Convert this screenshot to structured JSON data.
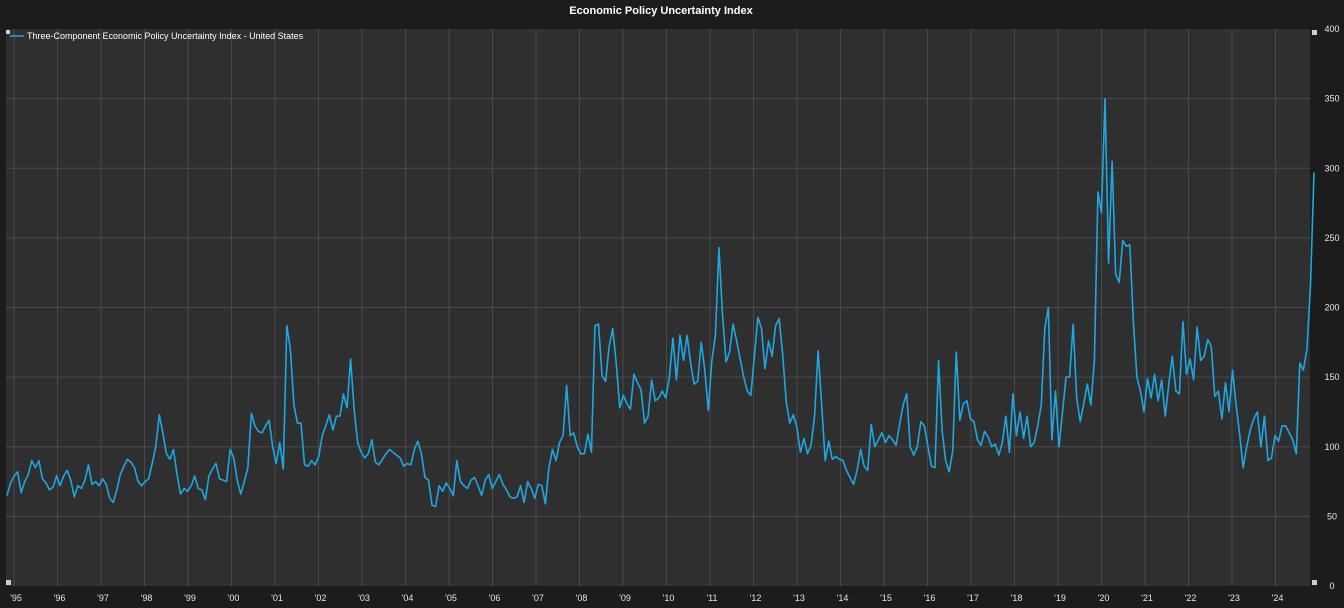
{
  "chart_data": {
    "type": "line",
    "title": "Economic Policy Uncertainty Index",
    "xlabel": "",
    "ylabel": "",
    "ylim": [
      0,
      400
    ],
    "y_ticks": [
      "0",
      "50",
      "100",
      "150",
      "200",
      "250",
      "300",
      "350",
      "400"
    ],
    "x_tick_labels": [
      "'95",
      "'96",
      "'97",
      "'98",
      "'99",
      "'00",
      "'01",
      "'02",
      "'03",
      "'04",
      "'05",
      "'06",
      "'07",
      "'08",
      "'09",
      "'10",
      "'11",
      "'12",
      "'13",
      "'14",
      "'15",
      "'16",
      "'17",
      "'18",
      "'19",
      "'20",
      "'21",
      "'22",
      "'23",
      "'24"
    ],
    "x_range": [
      "1995-01",
      "2024-12"
    ],
    "grid": true,
    "legend_position": "top-left",
    "series": [
      {
        "name": "Three-Component Economic Policy Uncertainty Index - United States",
        "color": "#1ea7e1",
        "start": "1995-01",
        "frequency": "monthly",
        "values": [
          65,
          74,
          79,
          82,
          67,
          75,
          80,
          90,
          85,
          90,
          77,
          74,
          69,
          71,
          79,
          72,
          79,
          83,
          76,
          64,
          72,
          70,
          76,
          87,
          73,
          75,
          72,
          77,
          73,
          63,
          60,
          69,
          80,
          86,
          91,
          89,
          85,
          75,
          72,
          75,
          77,
          88,
          100,
          123,
          110,
          95,
          91,
          98,
          80,
          66,
          70,
          68,
          72,
          79,
          70,
          69,
          62,
          79,
          84,
          88,
          77,
          76,
          75,
          98,
          92,
          76,
          66,
          75,
          85,
          124,
          115,
          111,
          110,
          115,
          119,
          100,
          88,
          103,
          84,
          187,
          170,
          130,
          117,
          117,
          87,
          86,
          90,
          87,
          93,
          108,
          115,
          123,
          112,
          122,
          122,
          138,
          128,
          163,
          127,
          103,
          96,
          92,
          95,
          105,
          89,
          87,
          91,
          95,
          98,
          96,
          94,
          92,
          86,
          88,
          87,
          98,
          104,
          95,
          78,
          76,
          58,
          57,
          72,
          68,
          74,
          70,
          65,
          90,
          75,
          72,
          70,
          76,
          78,
          72,
          65,
          76,
          80,
          70,
          75,
          80,
          73,
          69,
          64,
          63,
          64,
          72,
          60,
          75,
          70,
          63,
          73,
          72,
          59,
          85,
          98,
          90,
          103,
          108,
          144,
          108,
          110,
          100,
          95,
          95,
          109,
          96,
          187,
          188,
          151,
          147,
          172,
          185,
          160,
          128,
          137,
          131,
          127,
          152,
          146,
          141,
          117,
          122,
          148,
          133,
          135,
          140,
          135,
          150,
          178,
          148,
          180,
          162,
          180,
          160,
          145,
          147,
          175,
          155,
          126,
          162,
          180,
          243,
          195,
          161,
          168,
          188,
          176,
          163,
          150,
          140,
          137,
          165,
          193,
          185,
          156,
          176,
          165,
          187,
          192,
          166,
          132,
          117,
          123,
          114,
          96,
          106,
          95,
          101,
          122,
          169,
          130,
          90,
          104,
          91,
          93,
          91,
          90,
          83,
          78,
          73,
          83,
          98,
          86,
          83,
          116,
          100,
          105,
          110,
          103,
          108,
          105,
          101,
          116,
          130,
          138,
          100,
          94,
          100,
          118,
          115,
          100,
          86,
          85,
          162,
          112,
          90,
          82,
          97,
          168,
          119,
          131,
          133,
          120,
          118,
          105,
          101,
          111,
          107,
          100,
          102,
          94,
          103,
          122,
          96,
          138,
          108,
          125,
          106,
          122,
          100,
          103,
          115,
          130,
          185,
          200,
          105,
          140,
          100,
          125,
          150,
          150,
          188,
          135,
          118,
          131,
          145,
          130,
          162,
          283,
          268,
          350,
          232,
          305,
          224,
          218,
          248,
          244,
          245,
          190,
          150,
          140,
          125,
          149,
          135,
          152,
          133,
          148,
          122,
          145,
          165,
          140,
          138,
          190,
          152,
          163,
          148,
          186,
          162,
          165,
          177,
          172,
          136,
          140,
          120,
          146,
          125,
          155,
          130,
          109,
          85,
          100,
          112,
          120,
          125,
          100,
          122,
          90,
          92,
          108,
          104,
          115,
          115,
          110,
          105,
          95,
          160,
          155,
          170,
          215,
          297
        ]
      }
    ]
  }
}
